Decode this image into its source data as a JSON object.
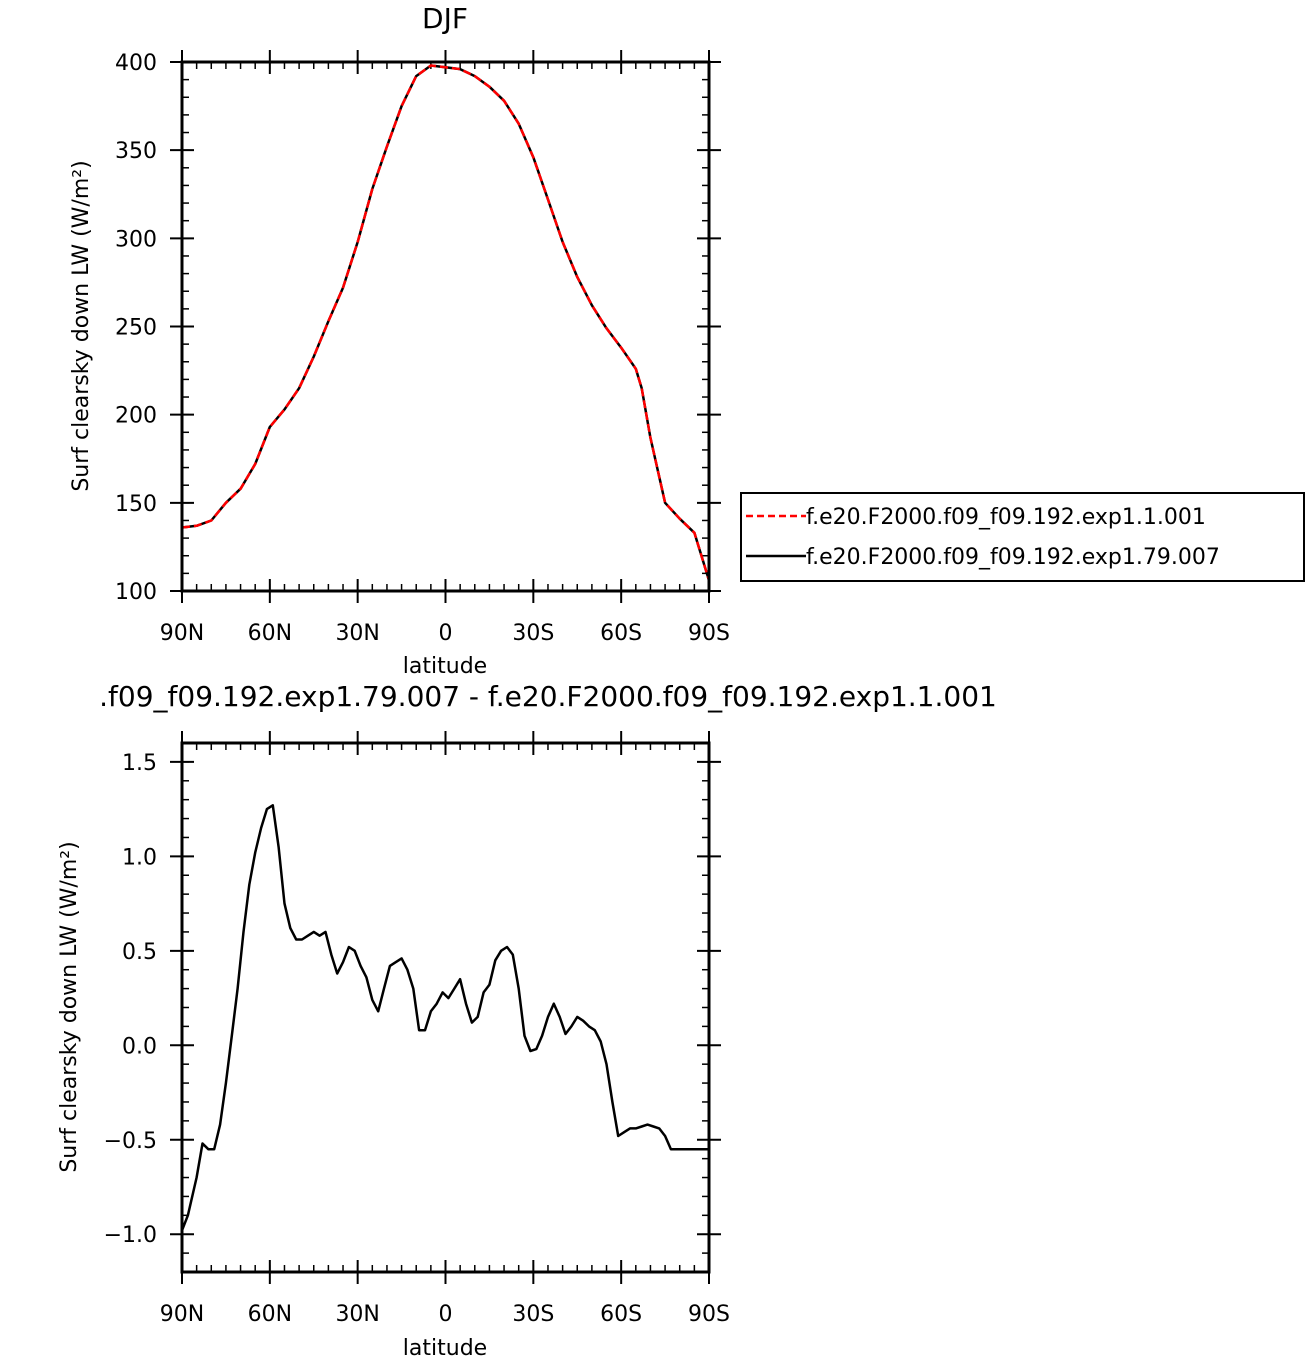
{
  "chart_data": [
    {
      "type": "line",
      "title": "DJF",
      "xlabel": "latitude",
      "ylabel": "Surf clearsky down LW (W/m²)",
      "xlim": [
        90,
        -90
      ],
      "ylim": [
        100,
        400
      ],
      "xticks": [
        {
          "value": 90,
          "label": "90N"
        },
        {
          "value": 60,
          "label": "60N"
        },
        {
          "value": 30,
          "label": "30N"
        },
        {
          "value": 0,
          "label": "0"
        },
        {
          "value": -30,
          "label": "30S"
        },
        {
          "value": -60,
          "label": "60S"
        },
        {
          "value": -90,
          "label": "90S"
        }
      ],
      "yticks": [
        {
          "value": 100,
          "label": "100"
        },
        {
          "value": 150,
          "label": "150"
        },
        {
          "value": 200,
          "label": "200"
        },
        {
          "value": 250,
          "label": "250"
        },
        {
          "value": 300,
          "label": "300"
        },
        {
          "value": 350,
          "label": "350"
        },
        {
          "value": 400,
          "label": "400"
        }
      ],
      "legend": {
        "placement": "right",
        "entries": [
          {
            "label": "f.e20.F2000.f09_f09.192.exp1.1.001",
            "color": "#ff0000",
            "dash": true
          },
          {
            "label": "f.e20.F2000.f09_f09.192.exp1.79.007",
            "color": "#000000",
            "dash": false
          }
        ]
      },
      "series": [
        {
          "name": "f.e20.F2000.f09_f09.192.exp1.79.007",
          "color": "#000000",
          "dash": false,
          "x": [
            90,
            85,
            80,
            75,
            70,
            65,
            60,
            55,
            50,
            45,
            40,
            35,
            30,
            25,
            20,
            15,
            10,
            5,
            0,
            -5,
            -10,
            -15,
            -20,
            -25,
            -30,
            -35,
            -40,
            -45,
            -50,
            -55,
            -60,
            -65,
            -67,
            -70,
            -75,
            -80,
            -85,
            -90
          ],
          "y": [
            136,
            137,
            140,
            150,
            158,
            172,
            193,
            203,
            215,
            233,
            253,
            272,
            298,
            328,
            352,
            375,
            392,
            398,
            397,
            396,
            392,
            386,
            378,
            365,
            346,
            322,
            298,
            278,
            262,
            249,
            238,
            226,
            215,
            187,
            150,
            141,
            133,
            106
          ]
        },
        {
          "name": "f.e20.F2000.f09_f09.192.exp1.1.001",
          "color": "#ff0000",
          "dash": true,
          "x": [
            90,
            85,
            80,
            75,
            70,
            65,
            60,
            55,
            50,
            45,
            40,
            35,
            30,
            25,
            20,
            15,
            10,
            5,
            0,
            -5,
            -10,
            -15,
            -20,
            -25,
            -30,
            -35,
            -40,
            -45,
            -50,
            -55,
            -60,
            -65,
            -67,
            -70,
            -75,
            -80,
            -85,
            -90
          ],
          "y": [
            136,
            137,
            140,
            150,
            158,
            172,
            193,
            203,
            215,
            233,
            253,
            272,
            298,
            328,
            352,
            375,
            392,
            398,
            397,
            396,
            392,
            386,
            378,
            365,
            346,
            322,
            298,
            278,
            262,
            249,
            238,
            226,
            215,
            187,
            150,
            141,
            133,
            106
          ]
        }
      ]
    },
    {
      "type": "line",
      "title": ".f09_f09.192.exp1.79.007 - f.e20.F2000.f09_f09.192.exp1.1.001",
      "xlabel": "latitude",
      "ylabel": "Surf clearsky down LW (W/m²)",
      "xlim": [
        90,
        -90
      ],
      "ylim": [
        -1.2,
        1.6
      ],
      "xticks": [
        {
          "value": 90,
          "label": "90N"
        },
        {
          "value": 60,
          "label": "60N"
        },
        {
          "value": 30,
          "label": "30N"
        },
        {
          "value": 0,
          "label": "0"
        },
        {
          "value": -30,
          "label": "30S"
        },
        {
          "value": -60,
          "label": "60S"
        },
        {
          "value": -90,
          "label": "90S"
        }
      ],
      "yticks": [
        {
          "value": -1.0,
          "label": "−1.0"
        },
        {
          "value": -0.5,
          "label": "−0.5"
        },
        {
          "value": 0.0,
          "label": "0.0"
        },
        {
          "value": 0.5,
          "label": "0.5"
        },
        {
          "value": 1.0,
          "label": "1.0"
        },
        {
          "value": 1.5,
          "label": "1.5"
        }
      ],
      "series": [
        {
          "color": "#000000",
          "dash": false,
          "x": [
            90,
            88,
            85,
            83,
            81,
            79,
            77,
            75,
            73,
            71,
            69,
            67,
            65,
            63,
            61,
            59,
            57,
            55,
            53,
            51,
            49,
            47,
            45,
            43,
            41,
            39,
            37,
            35,
            33,
            31,
            29,
            27,
            25,
            23,
            21,
            19,
            17,
            15,
            13,
            11,
            9,
            7,
            5,
            3,
            1,
            -1,
            -3,
            -5,
            -7,
            -9,
            -11,
            -13,
            -15,
            -17,
            -19,
            -21,
            -23,
            -25,
            -27,
            -29,
            -31,
            -33,
            -35,
            -37,
            -39,
            -41,
            -43,
            -45,
            -47,
            -49,
            -51,
            -53,
            -55,
            -57,
            -59,
            -61,
            -63,
            -65,
            -67,
            -69,
            -71,
            -73,
            -75,
            -77,
            -79,
            -81,
            -83,
            -85,
            -87,
            -90
          ],
          "y": [
            -0.98,
            -0.9,
            -0.7,
            -0.52,
            -0.55,
            -0.55,
            -0.42,
            -0.2,
            0.05,
            0.3,
            0.6,
            0.85,
            1.02,
            1.15,
            1.25,
            1.27,
            1.05,
            0.75,
            0.62,
            0.56,
            0.56,
            0.58,
            0.6,
            0.58,
            0.6,
            0.48,
            0.38,
            0.44,
            0.52,
            0.5,
            0.42,
            0.36,
            0.24,
            0.18,
            0.3,
            0.42,
            0.44,
            0.46,
            0.4,
            0.3,
            0.08,
            0.08,
            0.18,
            0.22,
            0.28,
            0.25,
            0.3,
            0.35,
            0.22,
            0.12,
            0.15,
            0.28,
            0.32,
            0.45,
            0.5,
            0.52,
            0.48,
            0.3,
            0.05,
            -0.03,
            -0.02,
            0.05,
            0.15,
            0.22,
            0.15,
            0.06,
            0.1,
            0.15,
            0.13,
            0.1,
            0.08,
            0.02,
            -0.1,
            -0.3,
            -0.48,
            -0.46,
            -0.44,
            -0.44,
            -0.43,
            -0.42,
            -0.43,
            -0.44,
            -0.48,
            -0.55,
            -0.55,
            -0.55,
            -0.55,
            -0.55,
            -0.55,
            -0.55
          ]
        }
      ]
    }
  ]
}
